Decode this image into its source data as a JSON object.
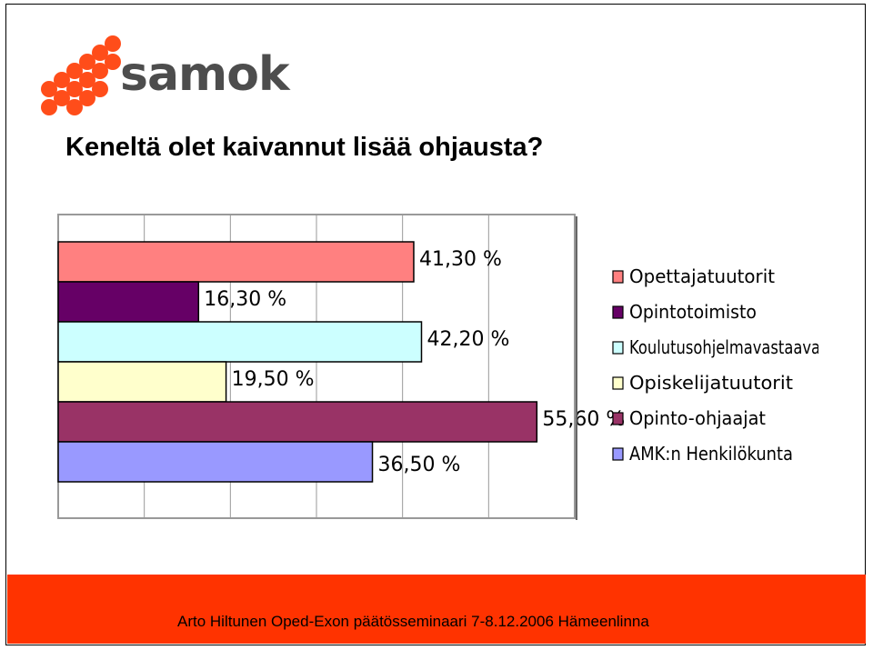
{
  "brand": {
    "logo_text": "samok",
    "logo_color": "#ff4d1a",
    "text_color": "#4d4d4d"
  },
  "slide": {
    "title": "Keneltä olet kaivannut lisää ohjausta?",
    "footer": "Arto Hiltunen Oped-Exon päätösseminaari 7-8.12.2006 Hämeenlinna",
    "footer_color": "#ff3300"
  },
  "chart_data": {
    "type": "bar",
    "orientation": "horizontal",
    "grid": true,
    "legend_position": "right",
    "xlim": [
      0,
      60
    ],
    "series": [
      {
        "name": "Opettajatuutorit",
        "value": 41.3,
        "label": "41,30 %",
        "color": "#ff8080"
      },
      {
        "name": "Opintotoimisto",
        "value": 16.3,
        "label": "16,30 %",
        "color": "#660066"
      },
      {
        "name": "Koulutusohjelmavastaava",
        "value": 42.2,
        "label": "42,20 %",
        "color": "#ccffff"
      },
      {
        "name": "Opiskelijatuutorit",
        "value": 19.5,
        "label": "19,50 %",
        "color": "#ffffcc"
      },
      {
        "name": "Opinto-ohjaajat",
        "value": 55.6,
        "label": "55,60 %",
        "color": "#993366"
      },
      {
        "name": "AMK:n Henkilökunta",
        "value": 36.5,
        "label": "36,50 %",
        "color": "#9999ff"
      }
    ]
  }
}
